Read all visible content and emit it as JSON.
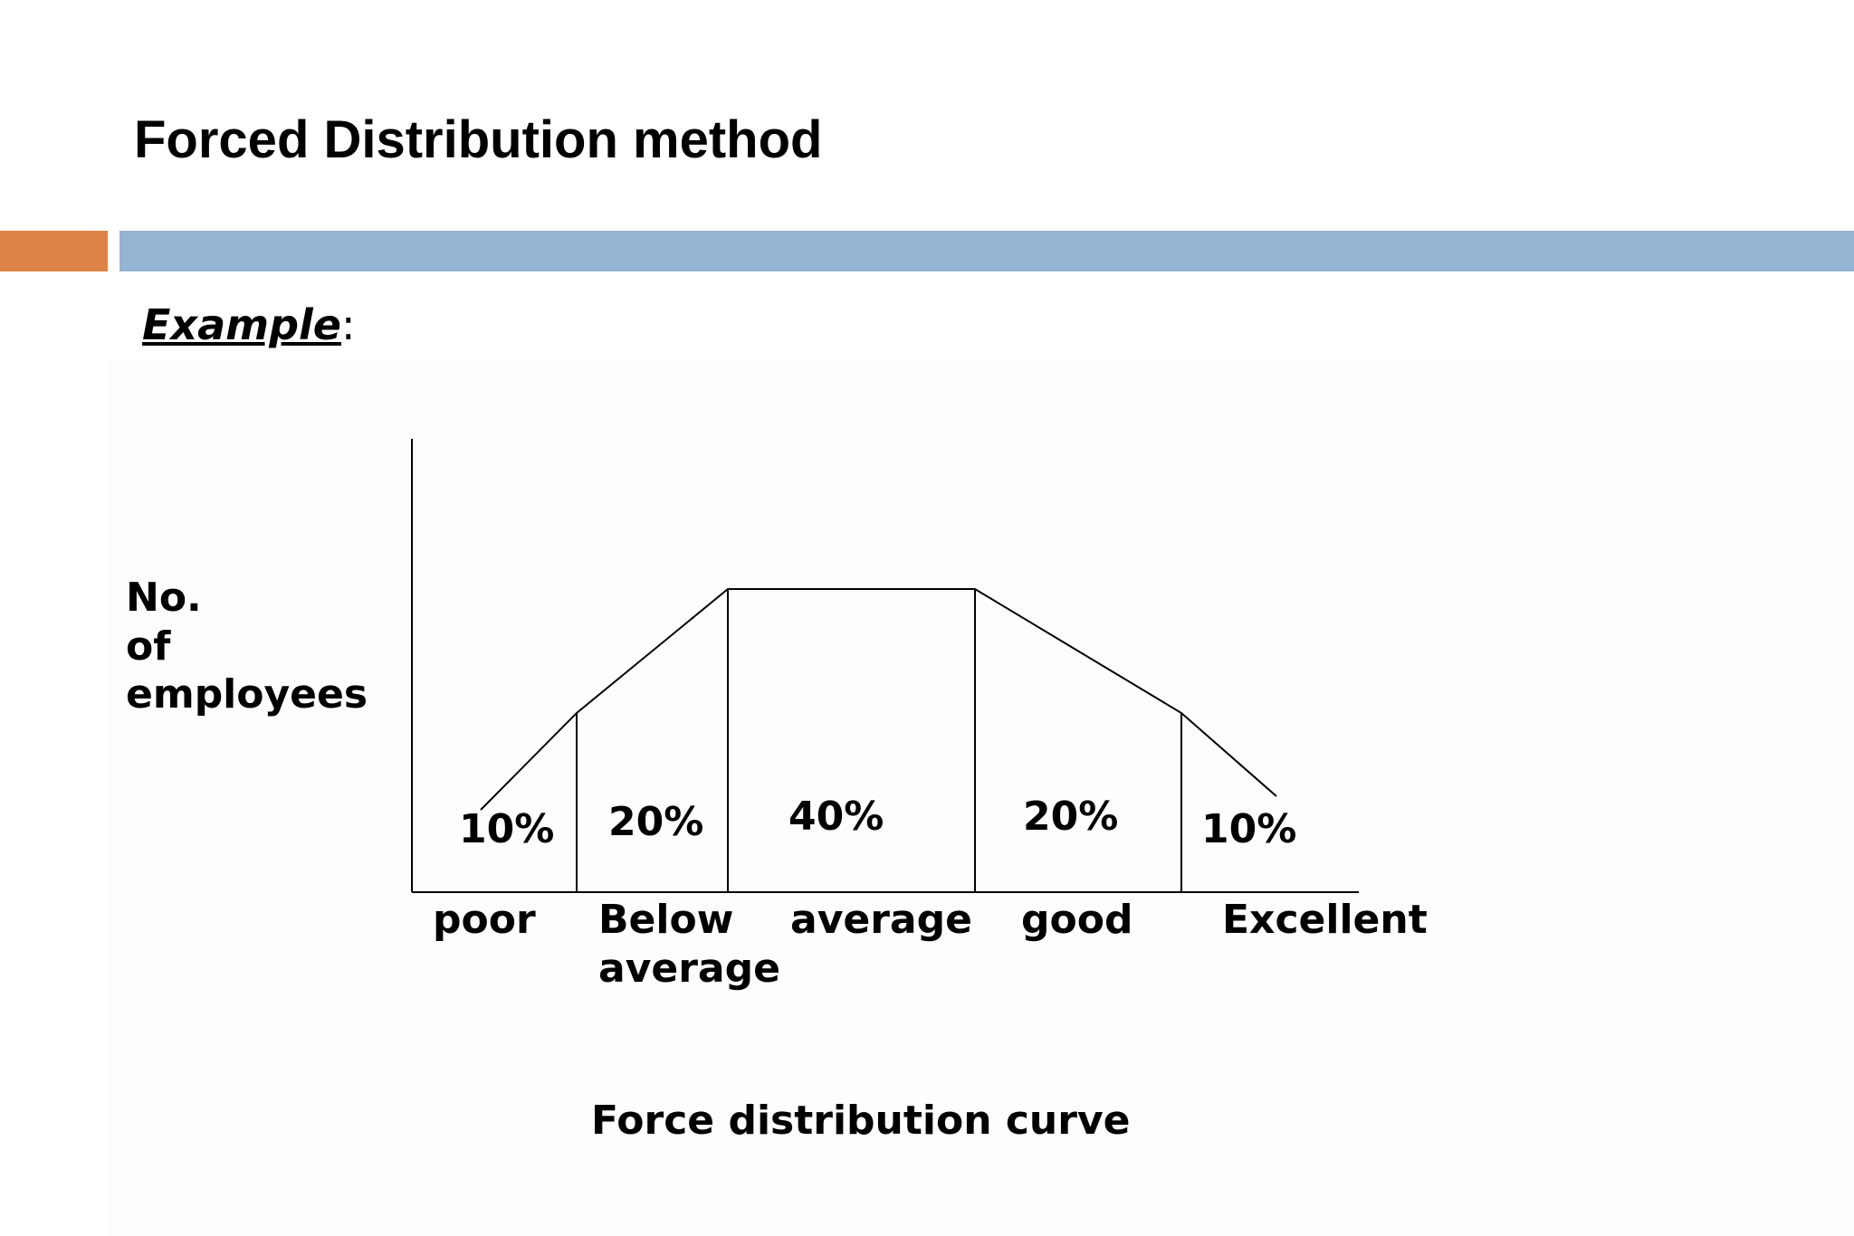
{
  "slide": {
    "title": "Forced Distribution method",
    "example_word": "Example",
    "example_colon": ":"
  },
  "colors": {
    "accent_orange": "#DE8448",
    "accent_blue": "#95B3D2",
    "line": "#000000"
  },
  "diagram": {
    "y_axis_label": [
      "No.",
      "of",
      "employees"
    ],
    "caption": "Force distribution curve",
    "categories": [
      {
        "name": "poor",
        "percent": "10%"
      },
      {
        "name": [
          "Below",
          "average"
        ],
        "percent": "20%"
      },
      {
        "name": "average",
        "percent": "40%"
      },
      {
        "name": "good",
        "percent": "20%"
      },
      {
        "name": "Excellent",
        "percent": "10%"
      }
    ]
  }
}
